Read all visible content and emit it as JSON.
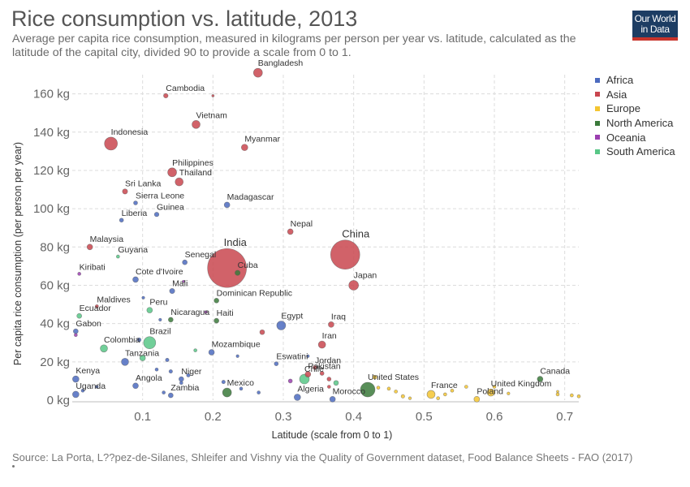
{
  "header": {
    "title": "Rice consumption vs. latitude, 2013",
    "subtitle": "Average per capita rice consumption, measured in kilograms per person per year vs. latitude, calculated as the latitude of the capital city, divided 90 to provide a scale from 0 to 1.",
    "logo_line1": "Our World",
    "logo_line2": "in Data"
  },
  "footer": {
    "source": "Source: La Porta, L??pez-de-Silanes, Shleifer and Vishny via the Quality of Government dataset, Food Balance Sheets - FAO (2017)"
  },
  "colors": {
    "Africa": "#4c6bbf",
    "Asia": "#c9464f",
    "Europe": "#f4c531",
    "North America": "#3b7a3b",
    "Oceania": "#9b3fb0",
    "South America": "#58c787"
  },
  "legend": [
    "Africa",
    "Asia",
    "Europe",
    "North America",
    "Oceania",
    "South America"
  ],
  "chart_data": {
    "type": "scatter",
    "title": "Rice consumption vs. latitude, 2013",
    "xlabel": "Latitude (scale from 0 to 1)",
    "ylabel": "Per capita rice consumption (per person per year)",
    "xlim": [
      0,
      0.72
    ],
    "ylim": [
      0,
      170
    ],
    "x_ticks": [
      0.1,
      0.2,
      0.3,
      0.4,
      0.5,
      0.6,
      0.7
    ],
    "y_ticks": [
      0,
      20,
      40,
      60,
      80,
      100,
      120,
      140,
      160
    ],
    "y_tick_labels": [
      "0 kg",
      "20 kg",
      "40 kg",
      "60 kg",
      "80 kg",
      "100 kg",
      "120 kg",
      "140 kg",
      "160 kg"
    ],
    "grid": true,
    "legend_position": "right",
    "note": "point size reflects population",
    "points": [
      {
        "label": "Bangladesh",
        "x": 0.264,
        "y": 171,
        "r": 5.5,
        "region": "Asia"
      },
      {
        "label": "Cambodia",
        "x": 0.133,
        "y": 159,
        "r": 2.8,
        "region": "Asia"
      },
      {
        "label": "",
        "x": 0.2,
        "y": 159,
        "r": 1.5,
        "region": "Asia"
      },
      {
        "label": "Vietnam",
        "x": 0.176,
        "y": 144,
        "r": 5,
        "region": "Asia"
      },
      {
        "label": "Indonesia",
        "x": 0.055,
        "y": 134,
        "r": 8,
        "region": "Asia"
      },
      {
        "label": "Myanmar",
        "x": 0.245,
        "y": 132,
        "r": 4,
        "region": "Asia"
      },
      {
        "label": "Philippines",
        "x": 0.142,
        "y": 119,
        "r": 5.5,
        "region": "Asia"
      },
      {
        "label": "Thailand",
        "x": 0.152,
        "y": 114,
        "r": 5,
        "region": "Asia"
      },
      {
        "label": "Sri Lanka",
        "x": 0.075,
        "y": 109,
        "r": 3.2,
        "region": "Asia"
      },
      {
        "label": "Sierra Leone",
        "x": 0.09,
        "y": 103,
        "r": 2.5,
        "region": "Africa"
      },
      {
        "label": "Madagascar",
        "x": 0.22,
        "y": 102,
        "r": 3.5,
        "region": "Africa"
      },
      {
        "label": "Guinea",
        "x": 0.12,
        "y": 97,
        "r": 2.8,
        "region": "Africa"
      },
      {
        "label": "Liberia",
        "x": 0.07,
        "y": 94,
        "r": 2.5,
        "region": "Africa"
      },
      {
        "label": "Nepal",
        "x": 0.31,
        "y": 88,
        "r": 3.5,
        "region": "Asia"
      },
      {
        "label": "Malaysia",
        "x": 0.025,
        "y": 80,
        "r": 3.5,
        "region": "Asia"
      },
      {
        "label": "China",
        "x": 0.388,
        "y": 76,
        "r": 18,
        "region": "Asia"
      },
      {
        "label": "Guyana",
        "x": 0.065,
        "y": 75,
        "r": 2,
        "region": "South America"
      },
      {
        "label": "Senegal",
        "x": 0.16,
        "y": 72,
        "r": 3,
        "region": "Africa"
      },
      {
        "label": "India",
        "x": 0.22,
        "y": 69,
        "r": 24,
        "region": "Asia"
      },
      {
        "label": "Cuba",
        "x": 0.235,
        "y": 66.5,
        "r": 3.2,
        "region": "North America"
      },
      {
        "label": "Kiribati",
        "x": 0.01,
        "y": 66,
        "r": 2,
        "region": "Oceania"
      },
      {
        "label": "Cote d'Ivoire",
        "x": 0.09,
        "y": 63,
        "r": 3.5,
        "region": "Africa"
      },
      {
        "label": "",
        "x": 0.158,
        "y": 62,
        "r": 1.5,
        "region": "Oceania"
      },
      {
        "label": "Japan",
        "x": 0.4,
        "y": 60,
        "r": 6,
        "region": "Asia"
      },
      {
        "label": "Mali",
        "x": 0.142,
        "y": 57,
        "r": 3.2,
        "region": "Africa"
      },
      {
        "label": "Dominican Republic",
        "x": 0.205,
        "y": 52,
        "r": 3,
        "region": "North America"
      },
      {
        "label": "",
        "x": 0.101,
        "y": 53.5,
        "r": 1.8,
        "region": "Africa"
      },
      {
        "label": "Maldives",
        "x": 0.035,
        "y": 49,
        "r": 2,
        "region": "Asia"
      },
      {
        "label": "Peru",
        "x": 0.11,
        "y": 47,
        "r": 3.5,
        "region": "South America"
      },
      {
        "label": "Ecuador",
        "x": 0.01,
        "y": 44,
        "r": 3,
        "region": "South America"
      },
      {
        "label": "Nicaragua",
        "x": 0.14,
        "y": 42,
        "r": 3,
        "region": "North America"
      },
      {
        "label": "Haiti",
        "x": 0.205,
        "y": 41.5,
        "r": 3,
        "region": "North America"
      },
      {
        "label": "Egypt",
        "x": 0.297,
        "y": 39,
        "r": 5.5,
        "region": "Africa"
      },
      {
        "label": "Iraq",
        "x": 0.368,
        "y": 39.5,
        "r": 3.5,
        "region": "Asia"
      },
      {
        "label": "Gabon",
        "x": 0.005,
        "y": 36,
        "r": 3,
        "region": "Africa"
      },
      {
        "label": "",
        "x": 0.27,
        "y": 35.5,
        "r": 3,
        "region": "Asia"
      },
      {
        "label": "Brazil",
        "x": 0.11,
        "y": 30,
        "r": 7.5,
        "region": "South America"
      },
      {
        "label": "Iran",
        "x": 0.355,
        "y": 29,
        "r": 4.5,
        "region": "Asia"
      },
      {
        "label": "Colombia",
        "x": 0.045,
        "y": 27,
        "r": 4.5,
        "region": "South America"
      },
      {
        "label": "Mozambique",
        "x": 0.198,
        "y": 25,
        "r": 3.5,
        "region": "Africa"
      },
      {
        "label": "Tanzania",
        "x": 0.075,
        "y": 20,
        "r": 4.5,
        "region": "Africa"
      },
      {
        "label": "",
        "x": 0.1,
        "y": 22,
        "r": 3.5,
        "region": "South America"
      },
      {
        "label": "Eswatini",
        "x": 0.29,
        "y": 19,
        "r": 2.5,
        "region": "Africa"
      },
      {
        "label": "Jordan",
        "x": 0.345,
        "y": 17,
        "r": 2.5,
        "region": "Asia"
      },
      {
        "label": "Pakistan",
        "x": 0.335,
        "y": 13.5,
        "r": 3.5,
        "region": "Asia"
      },
      {
        "label": "Chile",
        "x": 0.33,
        "y": 11,
        "r": 6,
        "region": "South America"
      },
      {
        "label": "Kenya",
        "x": 0.005,
        "y": 11,
        "r": 4,
        "region": "Africa"
      },
      {
        "label": "Niger",
        "x": 0.155,
        "y": 11,
        "r": 3,
        "region": "Africa"
      },
      {
        "label": "Angola",
        "x": 0.09,
        "y": 7.5,
        "r": 3.5,
        "region": "Africa"
      },
      {
        "label": "Mexico",
        "x": 0.22,
        "y": 4,
        "r": 5.5,
        "region": "North America"
      },
      {
        "label": "United States",
        "x": 0.42,
        "y": 5.5,
        "r": 9,
        "region": "North America"
      },
      {
        "label": "Canada",
        "x": 0.665,
        "y": 11,
        "r": 3.5,
        "region": "North America"
      },
      {
        "label": "United Kingdom",
        "x": 0.595,
        "y": 4,
        "r": 4.5,
        "region": "Europe"
      },
      {
        "label": "France",
        "x": 0.51,
        "y": 3,
        "r": 5,
        "region": "Europe"
      },
      {
        "label": "Poland",
        "x": 0.575,
        "y": 0.5,
        "r": 3.5,
        "region": "Europe"
      },
      {
        "label": "Zambia",
        "x": 0.14,
        "y": 2.5,
        "r": 3,
        "region": "Africa"
      },
      {
        "label": "Uganda",
        "x": 0.005,
        "y": 3,
        "r": 4,
        "region": "Africa"
      },
      {
        "label": "Algeria",
        "x": 0.32,
        "y": 1.5,
        "r": 4,
        "region": "Africa"
      },
      {
        "label": "Morocco",
        "x": 0.37,
        "y": 0.5,
        "r": 3.5,
        "region": "Africa"
      },
      {
        "label": "",
        "x": 0.43,
        "y": 12,
        "r": 2.5,
        "region": "Europe"
      },
      {
        "label": "",
        "x": 0.435,
        "y": 6.5,
        "r": 2,
        "region": "Europe"
      },
      {
        "label": "",
        "x": 0.46,
        "y": 4.5,
        "r": 2,
        "region": "Europe"
      },
      {
        "label": "",
        "x": 0.47,
        "y": 2,
        "r": 2.2,
        "region": "Europe"
      },
      {
        "label": "",
        "x": 0.45,
        "y": 6,
        "r": 2,
        "region": "Europe"
      },
      {
        "label": "",
        "x": 0.52,
        "y": 1,
        "r": 2,
        "region": "Europe"
      },
      {
        "label": "",
        "x": 0.54,
        "y": 5,
        "r": 2,
        "region": "Europe"
      },
      {
        "label": "",
        "x": 0.56,
        "y": 7,
        "r": 2,
        "region": "Europe"
      },
      {
        "label": "",
        "x": 0.6,
        "y": 7,
        "r": 2,
        "region": "Europe"
      },
      {
        "label": "",
        "x": 0.62,
        "y": 3.5,
        "r": 1.8,
        "region": "Europe"
      },
      {
        "label": "",
        "x": 0.69,
        "y": 3,
        "r": 2,
        "region": "Europe"
      },
      {
        "label": "",
        "x": 0.69,
        "y": 4.5,
        "r": 1.5,
        "region": "Europe"
      },
      {
        "label": "",
        "x": 0.71,
        "y": 2.5,
        "r": 2,
        "region": "Europe"
      },
      {
        "label": "",
        "x": 0.72,
        "y": 2,
        "r": 2,
        "region": "Europe"
      },
      {
        "label": "",
        "x": 0.53,
        "y": 3,
        "r": 2,
        "region": "Europe"
      },
      {
        "label": "",
        "x": 0.48,
        "y": 1,
        "r": 1.8,
        "region": "Europe"
      },
      {
        "label": "",
        "x": 0.015,
        "y": 5,
        "r": 2,
        "region": "Africa"
      },
      {
        "label": "",
        "x": 0.035,
        "y": 7,
        "r": 1.8,
        "region": "Africa"
      },
      {
        "label": "",
        "x": 0.12,
        "y": 16,
        "r": 2,
        "region": "Africa"
      },
      {
        "label": "",
        "x": 0.14,
        "y": 15,
        "r": 2.2,
        "region": "Africa"
      },
      {
        "label": "",
        "x": 0.155,
        "y": 9,
        "r": 2,
        "region": "Africa"
      },
      {
        "label": "",
        "x": 0.13,
        "y": 4,
        "r": 2,
        "region": "Africa"
      },
      {
        "label": "",
        "x": 0.165,
        "y": 13,
        "r": 2.2,
        "region": "Africa"
      },
      {
        "label": "",
        "x": 0.215,
        "y": 9.5,
        "r": 2.2,
        "region": "Africa"
      },
      {
        "label": "",
        "x": 0.24,
        "y": 6,
        "r": 2,
        "region": "Africa"
      },
      {
        "label": "",
        "x": 0.265,
        "y": 4,
        "r": 2,
        "region": "Africa"
      },
      {
        "label": "",
        "x": 0.135,
        "y": 21,
        "r": 2.2,
        "region": "Africa"
      },
      {
        "label": "",
        "x": 0.095,
        "y": 31.5,
        "r": 2.5,
        "region": "Africa"
      },
      {
        "label": "",
        "x": 0.125,
        "y": 42,
        "r": 1.8,
        "region": "Africa"
      },
      {
        "label": "",
        "x": 0.355,
        "y": 14,
        "r": 2.5,
        "region": "Asia"
      },
      {
        "label": "",
        "x": 0.365,
        "y": 11,
        "r": 2.5,
        "region": "Asia"
      },
      {
        "label": "",
        "x": 0.365,
        "y": 7,
        "r": 2,
        "region": "Asia"
      },
      {
        "label": "",
        "x": 0.31,
        "y": 10,
        "r": 2.5,
        "region": "Oceania"
      },
      {
        "label": "",
        "x": 0.375,
        "y": 9,
        "r": 3,
        "region": "South America"
      },
      {
        "label": "",
        "x": 0.175,
        "y": 26,
        "r": 2,
        "region": "South America"
      },
      {
        "label": "",
        "x": 0.19,
        "y": 46,
        "r": 1.8,
        "region": "Oceania"
      },
      {
        "label": "",
        "x": 0.005,
        "y": 34,
        "r": 2,
        "region": "Oceania"
      },
      {
        "label": "",
        "x": 0.235,
        "y": 23,
        "r": 1.8,
        "region": "Africa"
      },
      {
        "label": "",
        "x": 0.335,
        "y": 23,
        "r": 1.8,
        "region": "Africa"
      }
    ]
  }
}
